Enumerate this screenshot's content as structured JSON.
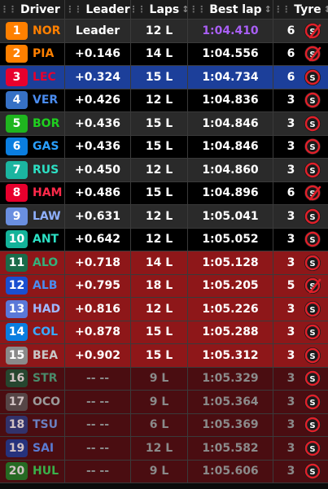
{
  "header": {
    "driver": "Driver",
    "leader": "Leader",
    "laps": "Laps",
    "best": "Best lap",
    "tyre": "Tyre"
  },
  "colors": {
    "fastest_lap": "#a95ff5",
    "row_out": "#8e1719",
    "row_eliminated": "#4a0d11",
    "row_selected": "#1c3f9a"
  },
  "rows": [
    {
      "pos": "1",
      "code": "NOR",
      "team_color": "#ff8000",
      "code_color": "#ff8000",
      "gap": "Leader",
      "laps": "12 L",
      "best": "1:04.410",
      "tyre_count": "6",
      "tyre_used": true,
      "style": "grey"
    },
    {
      "pos": "2",
      "code": "PIA",
      "team_color": "#ff8000",
      "code_color": "#ff8000",
      "gap": "+0.146",
      "laps": "14 L",
      "best": "1:04.556",
      "tyre_count": "6",
      "tyre_used": true,
      "style": "dark"
    },
    {
      "pos": "3",
      "code": "LEC",
      "team_color": "#e8002d",
      "code_color": "#e8002d",
      "gap": "+0.324",
      "laps": "15 L",
      "best": "1:04.734",
      "tyre_count": "6",
      "tyre_used": false,
      "style": "sel"
    },
    {
      "pos": "4",
      "code": "VER",
      "team_color": "#3671c6",
      "code_color": "#4a8cf0",
      "gap": "+0.426",
      "laps": "12 L",
      "best": "1:04.836",
      "tyre_count": "3",
      "tyre_used": false,
      "style": "dark"
    },
    {
      "pos": "5",
      "code": "BOR",
      "team_color": "#1fb51f",
      "code_color": "#1fd01f",
      "gap": "+0.436",
      "laps": "15 L",
      "best": "1:04.846",
      "tyre_count": "3",
      "tyre_used": false,
      "style": "grey"
    },
    {
      "pos": "6",
      "code": "GAS",
      "team_color": "#0a7ee0",
      "code_color": "#2aa0ff",
      "gap": "+0.436",
      "laps": "15 L",
      "best": "1:04.846",
      "tyre_count": "3",
      "tyre_used": false,
      "style": "dark"
    },
    {
      "pos": "7",
      "code": "RUS",
      "team_color": "#1bb5a0",
      "code_color": "#2ce0c4",
      "gap": "+0.450",
      "laps": "12 L",
      "best": "1:04.860",
      "tyre_count": "3",
      "tyre_used": false,
      "style": "grey"
    },
    {
      "pos": "8",
      "code": "HAM",
      "team_color": "#e8002d",
      "code_color": "#ff2a4a",
      "gap": "+0.486",
      "laps": "15 L",
      "best": "1:04.896",
      "tyre_count": "6",
      "tyre_used": true,
      "style": "dark"
    },
    {
      "pos": "9",
      "code": "LAW",
      "team_color": "#6a8fe0",
      "code_color": "#8fb0ff",
      "gap": "+0.631",
      "laps": "12 L",
      "best": "1:05.041",
      "tyre_count": "3",
      "tyre_used": false,
      "style": "grey"
    },
    {
      "pos": "10",
      "code": "ANT",
      "team_color": "#13b39a",
      "code_color": "#2ce0c4",
      "gap": "+0.642",
      "laps": "12 L",
      "best": "1:05.052",
      "tyre_count": "3",
      "tyre_used": false,
      "style": "dark"
    },
    {
      "pos": "11",
      "code": "ALO",
      "team_color": "#1a6b4a",
      "code_color": "#34b07a",
      "gap": "+0.718",
      "laps": "14 L",
      "best": "1:05.128",
      "tyre_count": "3",
      "tyre_used": false,
      "style": "red"
    },
    {
      "pos": "12",
      "code": "ALB",
      "team_color": "#1a4fd0",
      "code_color": "#4a8cf0",
      "gap": "+0.795",
      "laps": "18 L",
      "best": "1:05.205",
      "tyre_count": "5",
      "tyre_used": true,
      "style": "red"
    },
    {
      "pos": "13",
      "code": "HAD",
      "team_color": "#5a78d8",
      "code_color": "#9fb8ff",
      "gap": "+0.816",
      "laps": "12 L",
      "best": "1:05.226",
      "tyre_count": "3",
      "tyre_used": false,
      "style": "red"
    },
    {
      "pos": "14",
      "code": "COL",
      "team_color": "#0a7ee0",
      "code_color": "#3aa8ff",
      "gap": "+0.878",
      "laps": "15 L",
      "best": "1:05.288",
      "tyre_count": "3",
      "tyre_used": false,
      "style": "red"
    },
    {
      "pos": "15",
      "code": "BEA",
      "team_color": "#8a8a8a",
      "code_color": "#c8c8c8",
      "gap": "+0.902",
      "laps": "15 L",
      "best": "1:05.312",
      "tyre_count": "3",
      "tyre_used": false,
      "style": "red"
    },
    {
      "pos": "16",
      "code": "STR",
      "team_color": "#1a5a3a",
      "code_color": "#4a8a6a",
      "gap": "-- --",
      "laps": "9 L",
      "best": "1:05.329",
      "tyre_count": "3",
      "tyre_used": false,
      "style": "maroon"
    },
    {
      "pos": "17",
      "code": "OCO",
      "team_color": "#5a5a5a",
      "code_color": "#9a9a9a",
      "gap": "-- --",
      "laps": "9 L",
      "best": "1:05.364",
      "tyre_count": "3",
      "tyre_used": false,
      "style": "maroon"
    },
    {
      "pos": "18",
      "code": "TSU",
      "team_color": "#2a3f8a",
      "code_color": "#6a80c0",
      "gap": "-- --",
      "laps": "6 L",
      "best": "1:05.369",
      "tyre_count": "3",
      "tyre_used": false,
      "style": "maroon"
    },
    {
      "pos": "19",
      "code": "SAI",
      "team_color": "#1a3fa0",
      "code_color": "#5a7ad0",
      "gap": "-- --",
      "laps": "12 L",
      "best": "1:05.582",
      "tyre_count": "3",
      "tyre_used": false,
      "style": "maroon"
    },
    {
      "pos": "20",
      "code": "HUL",
      "team_color": "#1a8a2a",
      "code_color": "#3ab04a",
      "gap": "-- --",
      "laps": "9 L",
      "best": "1:05.606",
      "tyre_count": "3",
      "tyre_used": false,
      "style": "maroon"
    }
  ]
}
